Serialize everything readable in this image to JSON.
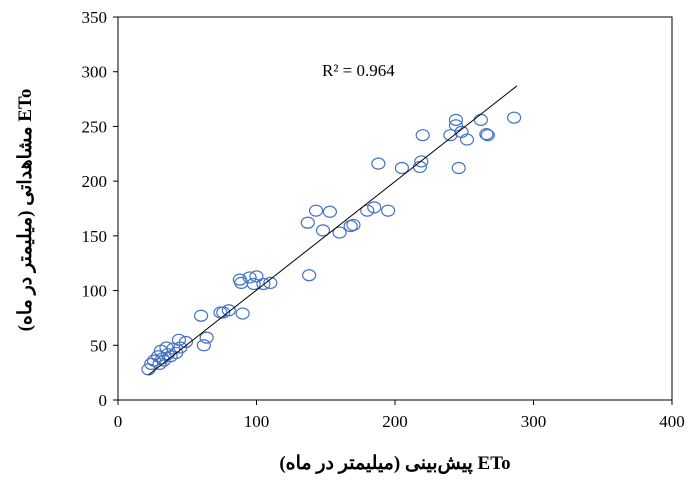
{
  "chart_data": {
    "type": "scatter",
    "xlabel": "ETo پیش‌بینی (میلیمتر در ماه)",
    "ylabel": "ETo مشاهداتی (میلیمتر در ماه)",
    "xlim": [
      0,
      400
    ],
    "ylim": [
      0,
      350
    ],
    "xticks": [
      0,
      100,
      200,
      300,
      400
    ],
    "yticks": [
      0,
      50,
      100,
      150,
      200,
      250,
      300,
      350
    ],
    "grid": false,
    "marker_color": "#4472c4",
    "trendline_color": "#000000",
    "trendline": {
      "x": [
        22,
        288
      ],
      "y": [
        23,
        287
      ]
    },
    "annotation": "R² = 0.964",
    "points": [
      [
        22,
        28
      ],
      [
        24,
        33
      ],
      [
        26,
        36
      ],
      [
        29,
        40
      ],
      [
        30,
        33
      ],
      [
        31,
        45
      ],
      [
        32,
        38
      ],
      [
        33,
        36
      ],
      [
        35,
        48
      ],
      [
        36,
        42
      ],
      [
        38,
        40
      ],
      [
        40,
        47
      ],
      [
        42,
        43
      ],
      [
        44,
        55
      ],
      [
        45,
        48
      ],
      [
        49,
        53
      ],
      [
        60,
        77
      ],
      [
        62,
        50
      ],
      [
        64,
        57
      ],
      [
        74,
        80
      ],
      [
        76,
        80
      ],
      [
        80,
        82
      ],
      [
        88,
        110
      ],
      [
        89,
        107
      ],
      [
        90,
        79
      ],
      [
        95,
        112
      ],
      [
        98,
        106
      ],
      [
        100,
        113
      ],
      [
        105,
        106
      ],
      [
        110,
        107
      ],
      [
        137,
        162
      ],
      [
        138,
        114
      ],
      [
        143,
        173
      ],
      [
        148,
        155
      ],
      [
        153,
        172
      ],
      [
        160,
        153
      ],
      [
        168,
        159
      ],
      [
        170,
        160
      ],
      [
        180,
        173
      ],
      [
        185,
        176
      ],
      [
        188,
        216
      ],
      [
        195,
        173
      ],
      [
        205,
        212
      ],
      [
        218,
        213
      ],
      [
        219,
        218
      ],
      [
        220,
        242
      ],
      [
        240,
        242
      ],
      [
        244,
        256
      ],
      [
        244,
        251
      ],
      [
        246,
        212
      ],
      [
        248,
        245
      ],
      [
        252,
        238
      ],
      [
        262,
        256
      ],
      [
        266,
        243
      ],
      [
        267,
        242
      ],
      [
        286,
        258
      ]
    ]
  }
}
